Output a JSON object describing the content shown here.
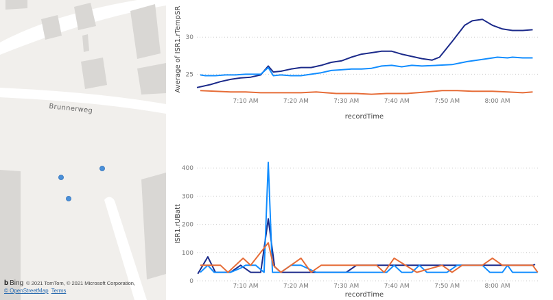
{
  "map": {
    "road_label": "Brunnerweg",
    "provider": "Bing",
    "copyright": "© 2021 TomTom, © 2021 Microsoft Corporation,",
    "osm_link": "© OpenStreetMap",
    "terms_link": "Terms",
    "marker_color": "#4a90d9",
    "marker_count": 3
  },
  "chart_data": [
    {
      "type": "line",
      "ylabel": "Average of ISR1.rTempSR",
      "xlabel": "recordTime",
      "xticks": [
        "7:10 AM",
        "7:20 AM",
        "7:30 AM",
        "7:40 AM",
        "7:50 AM",
        "8:00 AM"
      ],
      "yticks": [
        25,
        30
      ],
      "ylim": [
        23,
        32.7
      ],
      "xlim": [
        "7:00",
        "8:08"
      ],
      "grid": true,
      "series": [
        {
          "color": "#1b2a8a",
          "points": [
            [
              "7:00:20",
              23.2
            ],
            [
              "7:03",
              23.6
            ],
            [
              "7:05",
              24.0
            ],
            [
              "7:07",
              24.3
            ],
            [
              "7:09",
              24.5
            ],
            [
              "7:11",
              24.6
            ],
            [
              "7:13",
              24.9
            ],
            [
              "7:14:30",
              26.1
            ],
            [
              "7:15:30",
              25.3
            ],
            [
              "7:17",
              25.4
            ],
            [
              "7:19",
              25.7
            ],
            [
              "7:21",
              25.9
            ],
            [
              "7:23",
              25.9
            ],
            [
              "7:25",
              26.2
            ],
            [
              "7:27",
              26.6
            ],
            [
              "7:29",
              26.8
            ],
            [
              "7:31",
              27.3
            ],
            [
              "7:33",
              27.7
            ],
            [
              "7:35",
              27.9
            ],
            [
              "7:37",
              28.1
            ],
            [
              "7:39",
              28.1
            ],
            [
              "7:41",
              27.7
            ],
            [
              "7:43",
              27.4
            ],
            [
              "7:45",
              27.1
            ],
            [
              "7:47",
              26.9
            ],
            [
              "7:48:30",
              27.3
            ],
            [
              "7:51",
              29.4
            ],
            [
              "7:53:30",
              31.6
            ],
            [
              "7:55",
              32.2
            ],
            [
              "7:57",
              32.4
            ],
            [
              "7:59",
              31.6
            ],
            [
              "8:01",
              31.1
            ],
            [
              "8:03",
              30.9
            ],
            [
              "8:05",
              30.9
            ],
            [
              "8:07",
              31.0
            ]
          ]
        },
        {
          "color": "#118dff",
          "points": [
            [
              "7:01",
              24.9
            ],
            [
              "7:02",
              24.8
            ],
            [
              "7:04",
              24.8
            ],
            [
              "7:06",
              24.9
            ],
            [
              "7:08",
              24.9
            ],
            [
              "7:10",
              25.0
            ],
            [
              "7:12",
              25.0
            ],
            [
              "7:13",
              25.0
            ],
            [
              "7:14:30",
              25.9
            ],
            [
              "7:15:30",
              24.8
            ],
            [
              "7:17",
              24.9
            ],
            [
              "7:19",
              24.8
            ],
            [
              "7:21",
              24.8
            ],
            [
              "7:23",
              25.0
            ],
            [
              "7:25",
              25.2
            ],
            [
              "7:27",
              25.5
            ],
            [
              "7:29",
              25.6
            ],
            [
              "7:31",
              25.7
            ],
            [
              "7:33",
              25.7
            ],
            [
              "7:35",
              25.8
            ],
            [
              "7:37",
              26.1
            ],
            [
              "7:39",
              26.2
            ],
            [
              "7:41",
              26.0
            ],
            [
              "7:43",
              26.2
            ],
            [
              "7:45",
              26.1
            ],
            [
              "7:48",
              26.2
            ],
            [
              "7:51",
              26.3
            ],
            [
              "7:54",
              26.7
            ],
            [
              "7:57",
              27.0
            ],
            [
              "8:00",
              27.3
            ],
            [
              "8:02",
              27.2
            ],
            [
              "8:03",
              27.3
            ],
            [
              "8:05",
              27.2
            ],
            [
              "8:07",
              27.2
            ]
          ]
        },
        {
          "color": "#e66c37",
          "points": [
            [
              "7:01",
              22.8
            ],
            [
              "7:04",
              22.7
            ],
            [
              "7:07",
              22.6
            ],
            [
              "7:10",
              22.6
            ],
            [
              "7:13",
              22.5
            ],
            [
              "7:17",
              22.5
            ],
            [
              "7:21",
              22.5
            ],
            [
              "7:24",
              22.6
            ],
            [
              "7:28",
              22.4
            ],
            [
              "7:32",
              22.4
            ],
            [
              "7:35",
              22.3
            ],
            [
              "7:38",
              22.4
            ],
            [
              "7:42",
              22.4
            ],
            [
              "7:46",
              22.6
            ],
            [
              "7:49",
              22.8
            ],
            [
              "7:52",
              22.8
            ],
            [
              "7:55",
              22.7
            ],
            [
              "7:59",
              22.7
            ],
            [
              "8:02",
              22.6
            ],
            [
              "8:05",
              22.5
            ],
            [
              "8:07",
              22.6
            ]
          ]
        }
      ]
    },
    {
      "type": "line",
      "ylabel": "ISR1.rUBatt",
      "xlabel": "recordTime",
      "xticks": [
        "7:10 AM",
        "7:20 AM",
        "7:30 AM",
        "7:40 AM",
        "7:50 AM",
        "8:00 AM"
      ],
      "yticks": [
        0,
        100,
        200,
        300,
        400
      ],
      "ylim": [
        0,
        420
      ],
      "xlim": [
        "7:00",
        "8:08"
      ],
      "grid": true,
      "series": [
        {
          "color": "#1b2a8a",
          "points": [
            [
              "7:00:30",
              25
            ],
            [
              "7:02:30",
              85
            ],
            [
              "7:04",
              30
            ],
            [
              "7:07",
              30
            ],
            [
              "7:09",
              55
            ],
            [
              "7:11",
              30
            ],
            [
              "7:13",
              30
            ],
            [
              "7:14:30",
              220
            ],
            [
              "7:15:45",
              50
            ],
            [
              "7:17",
              30
            ],
            [
              "7:30",
              30
            ],
            [
              "7:32",
              55
            ],
            [
              "8:07",
              55
            ],
            [
              "8:07:30",
              58
            ]
          ]
        },
        {
          "color": "#118dff",
          "points": [
            [
              "7:01",
              30
            ],
            [
              "7:02:30",
              55
            ],
            [
              "7:03:45",
              30
            ],
            [
              "7:07",
              30
            ],
            [
              "7:09",
              45
            ],
            [
              "7:10",
              55
            ],
            [
              "7:12",
              55
            ],
            [
              "7:13:40",
              30
            ],
            [
              "7:14:30",
              420
            ],
            [
              "7:15:20",
              30
            ],
            [
              "7:17",
              30
            ],
            [
              "7:19",
              55
            ],
            [
              "7:21",
              55
            ],
            [
              "7:24",
              30
            ],
            [
              "7:36",
              30
            ],
            [
              "7:38",
              30
            ],
            [
              "7:39:30",
              55
            ],
            [
              "7:41",
              30
            ],
            [
              "7:43",
              30
            ],
            [
              "7:44:30",
              55
            ],
            [
              "7:46",
              30
            ],
            [
              "7:50",
              30
            ],
            [
              "7:52",
              55
            ],
            [
              "7:57",
              55
            ],
            [
              "7:58:30",
              30
            ],
            [
              "8:01",
              30
            ],
            [
              "8:02",
              55
            ],
            [
              "8:03",
              30
            ],
            [
              "8:08",
              30
            ]
          ]
        },
        {
          "color": "#e66c37",
          "points": [
            [
              "7:01",
              55
            ],
            [
              "7:05",
              55
            ],
            [
              "7:06:30",
              30
            ],
            [
              "7:09:30",
              80
            ],
            [
              "7:11",
              55
            ],
            [
              "7:14:30",
              135
            ],
            [
              "7:15:30",
              55
            ],
            [
              "7:17",
              30
            ],
            [
              "7:21",
              80
            ],
            [
              "7:23",
              30
            ],
            [
              "7:25",
              55
            ],
            [
              "7:36",
              55
            ],
            [
              "7:37:30",
              30
            ],
            [
              "7:39:30",
              80
            ],
            [
              "7:44",
              30
            ],
            [
              "7:49",
              55
            ],
            [
              "7:51",
              30
            ],
            [
              "7:53",
              55
            ],
            [
              "7:57",
              55
            ],
            [
              "7:59",
              80
            ],
            [
              "8:01",
              55
            ],
            [
              "8:07",
              55
            ],
            [
              "8:08",
              30
            ]
          ]
        }
      ]
    }
  ]
}
